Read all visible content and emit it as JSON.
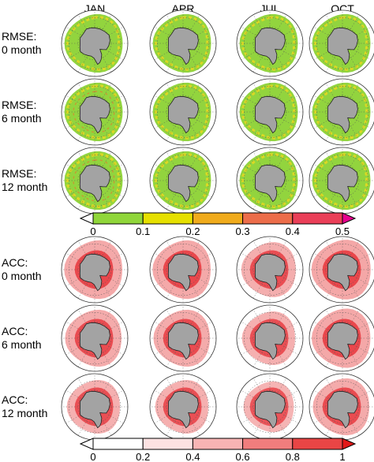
{
  "chart_data": {
    "type": "heatmap",
    "columns": [
      "JAN",
      "APR",
      "JUL",
      "OCT"
    ],
    "rmse": {
      "row_labels": [
        [
          "RMSE:",
          "0 month"
        ],
        [
          "RMSE:",
          "6 month"
        ],
        [
          "RMSE:",
          "12 month"
        ]
      ],
      "colorbar": {
        "tick_labels": [
          "0",
          "0.1",
          "0.2",
          "0.3",
          "0.4",
          "0.5"
        ],
        "colors": [
          "#90d63a",
          "#e6e000",
          "#f0ab1c",
          "#ec6d4a",
          "#ea3f58",
          "#e6008e"
        ]
      },
      "levels": [
        [
          0.12,
          0.11,
          0.11,
          0.11
        ],
        [
          0.14,
          0.12,
          0.12,
          0.12
        ],
        [
          0.16,
          0.13,
          0.13,
          0.13
        ]
      ]
    },
    "acc": {
      "row_labels": [
        [
          "ACC:",
          "0 month"
        ],
        [
          "ACC:",
          "6 month"
        ],
        [
          "ACC:",
          "12 month"
        ]
      ],
      "colorbar": {
        "tick_labels": [
          "0",
          "0.2",
          "0.4",
          "0.6",
          "0.8",
          "1"
        ],
        "colors": [
          "#ffffff",
          "#fde2e2",
          "#f8b4b4",
          "#f07d7d",
          "#e94545",
          "#e31818"
        ]
      },
      "levels": [
        [
          0.78,
          0.78,
          0.65,
          0.82
        ],
        [
          0.72,
          0.72,
          0.6,
          0.8
        ],
        [
          0.6,
          0.6,
          0.5,
          0.72
        ]
      ]
    },
    "colors": {
      "land": "#a3a3a3",
      "rmse_base": "#92d43e",
      "rmse_hot": "#ecd91e",
      "rmse_edge": "#e9742c",
      "acc_inner": "#e8393f",
      "acc_outer": "#f29b9b"
    }
  }
}
